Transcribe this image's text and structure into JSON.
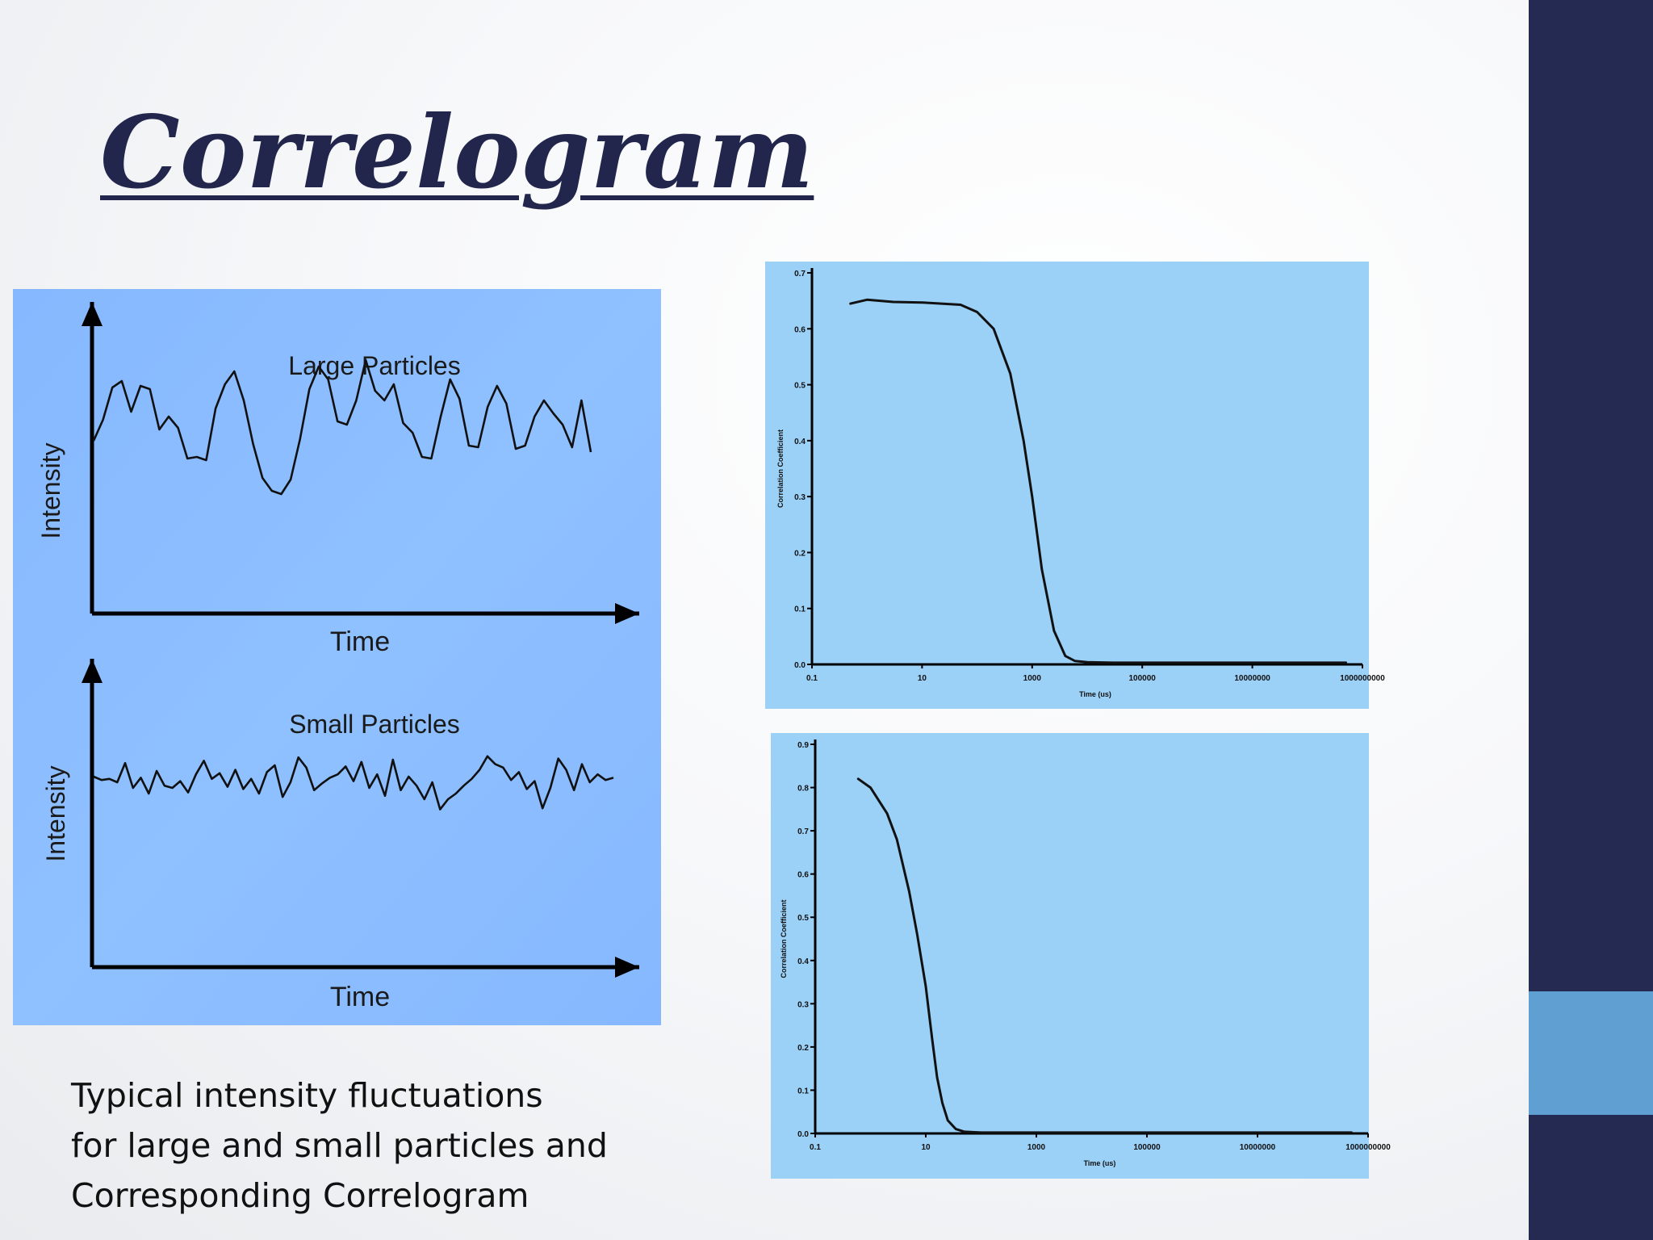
{
  "slide": {
    "title": "Correlogram",
    "caption": [
      "Typical intensity fluctuations",
      "for large and small particles and",
      "Corresponding Correlogram"
    ],
    "colors": {
      "sidebar": "#252a52",
      "sidebar_accent": "#5f9fd1",
      "title": "#22264c",
      "fluct_panel": "#8bbcff",
      "corr_panel": "#9bd0f7"
    }
  },
  "chart_data": [
    {
      "type": "line",
      "title": "Large Particles",
      "xlabel": "Time",
      "ylabel": "Intensity",
      "axis_ticks": false,
      "series": [
        {
          "values": [
            0.45,
            0.58,
            0.78,
            0.82,
            0.63,
            0.79,
            0.77,
            0.52,
            0.6,
            0.53,
            0.34,
            0.35,
            0.33,
            0.65,
            0.8,
            0.88,
            0.7,
            0.43,
            0.22,
            0.14,
            0.12,
            0.21,
            0.46,
            0.77,
            0.91,
            0.83,
            0.57,
            0.55,
            0.7,
            0.95,
            0.76,
            0.7,
            0.8,
            0.56,
            0.5,
            0.35,
            0.34,
            0.6,
            0.83,
            0.71,
            0.42,
            0.41,
            0.66,
            0.79,
            0.68,
            0.4,
            0.42,
            0.6,
            0.7,
            0.62,
            0.55,
            0.41,
            0.7,
            0.38
          ]
        }
      ]
    },
    {
      "type": "line",
      "title": "Small Particles",
      "xlabel": "Time",
      "ylabel": "Intensity",
      "axis_ticks": false,
      "series": [
        {
          "values": [
            0.6,
            0.57,
            0.58,
            0.55,
            0.72,
            0.5,
            0.59,
            0.45,
            0.65,
            0.52,
            0.5,
            0.56,
            0.46,
            0.62,
            0.74,
            0.58,
            0.63,
            0.51,
            0.66,
            0.49,
            0.58,
            0.45,
            0.64,
            0.7,
            0.42,
            0.55,
            0.77,
            0.68,
            0.48,
            0.54,
            0.59,
            0.62,
            0.69,
            0.56,
            0.73,
            0.5,
            0.62,
            0.43,
            0.75,
            0.48,
            0.6,
            0.52,
            0.4,
            0.55,
            0.31,
            0.4,
            0.45,
            0.52,
            0.58,
            0.66,
            0.78,
            0.71,
            0.68,
            0.57,
            0.64,
            0.49,
            0.56,
            0.32,
            0.5,
            0.76,
            0.66,
            0.48,
            0.71,
            0.55,
            0.62,
            0.57,
            0.59
          ]
        }
      ]
    },
    {
      "type": "line",
      "title": "",
      "x_scale": "log",
      "xlabel": "Time (us)",
      "ylabel": "Correlation Coefficient",
      "xlim": [
        0.1,
        1000000000
      ],
      "ylim": [
        0,
        0.7
      ],
      "x_ticks": [
        "0.1",
        "10",
        "1000",
        "100000",
        "10000000",
        "1000000000"
      ],
      "y_ticks": [
        "0.0",
        "0.1",
        "0.2",
        "0.3",
        "0.4",
        "0.5",
        "0.6",
        "0.7"
      ],
      "series": [
        {
          "x": [
            0.5,
            1,
            3,
            10,
            50,
            100,
            200,
            400,
            700,
            1000,
            1500,
            2500,
            4000,
            6000,
            10000,
            30000,
            100000,
            1000000,
            10000000,
            100000000,
            500000000
          ],
          "y": [
            0.645,
            0.652,
            0.648,
            0.647,
            0.643,
            0.63,
            0.6,
            0.52,
            0.4,
            0.3,
            0.17,
            0.06,
            0.015,
            0.006,
            0.004,
            0.003,
            0.003,
            0.003,
            0.003,
            0.003,
            0.003
          ]
        }
      ]
    },
    {
      "type": "line",
      "title": "",
      "x_scale": "log",
      "xlabel": "Time (us)",
      "ylabel": "Correlation Coefficient",
      "xlim": [
        0.1,
        1000000000
      ],
      "ylim": [
        0,
        0.9
      ],
      "x_ticks": [
        "0.1",
        "10",
        "1000",
        "100000",
        "10000000",
        "1000000000"
      ],
      "y_ticks": [
        "0.0",
        "0.1",
        "0.2",
        "0.3",
        "0.4",
        "0.5",
        "0.6",
        "0.7",
        "0.8",
        "0.9"
      ],
      "series": [
        {
          "x": [
            0.6,
            1,
            2,
            3,
            5,
            7,
            10,
            13,
            16,
            20,
            25,
            35,
            50,
            100,
            1000,
            100000,
            10000000,
            500000000
          ],
          "y": [
            0.82,
            0.8,
            0.74,
            0.68,
            0.56,
            0.46,
            0.34,
            0.22,
            0.13,
            0.07,
            0.03,
            0.01,
            0.004,
            0.002,
            0.002,
            0.002,
            0.002,
            0.002
          ]
        }
      ]
    }
  ]
}
